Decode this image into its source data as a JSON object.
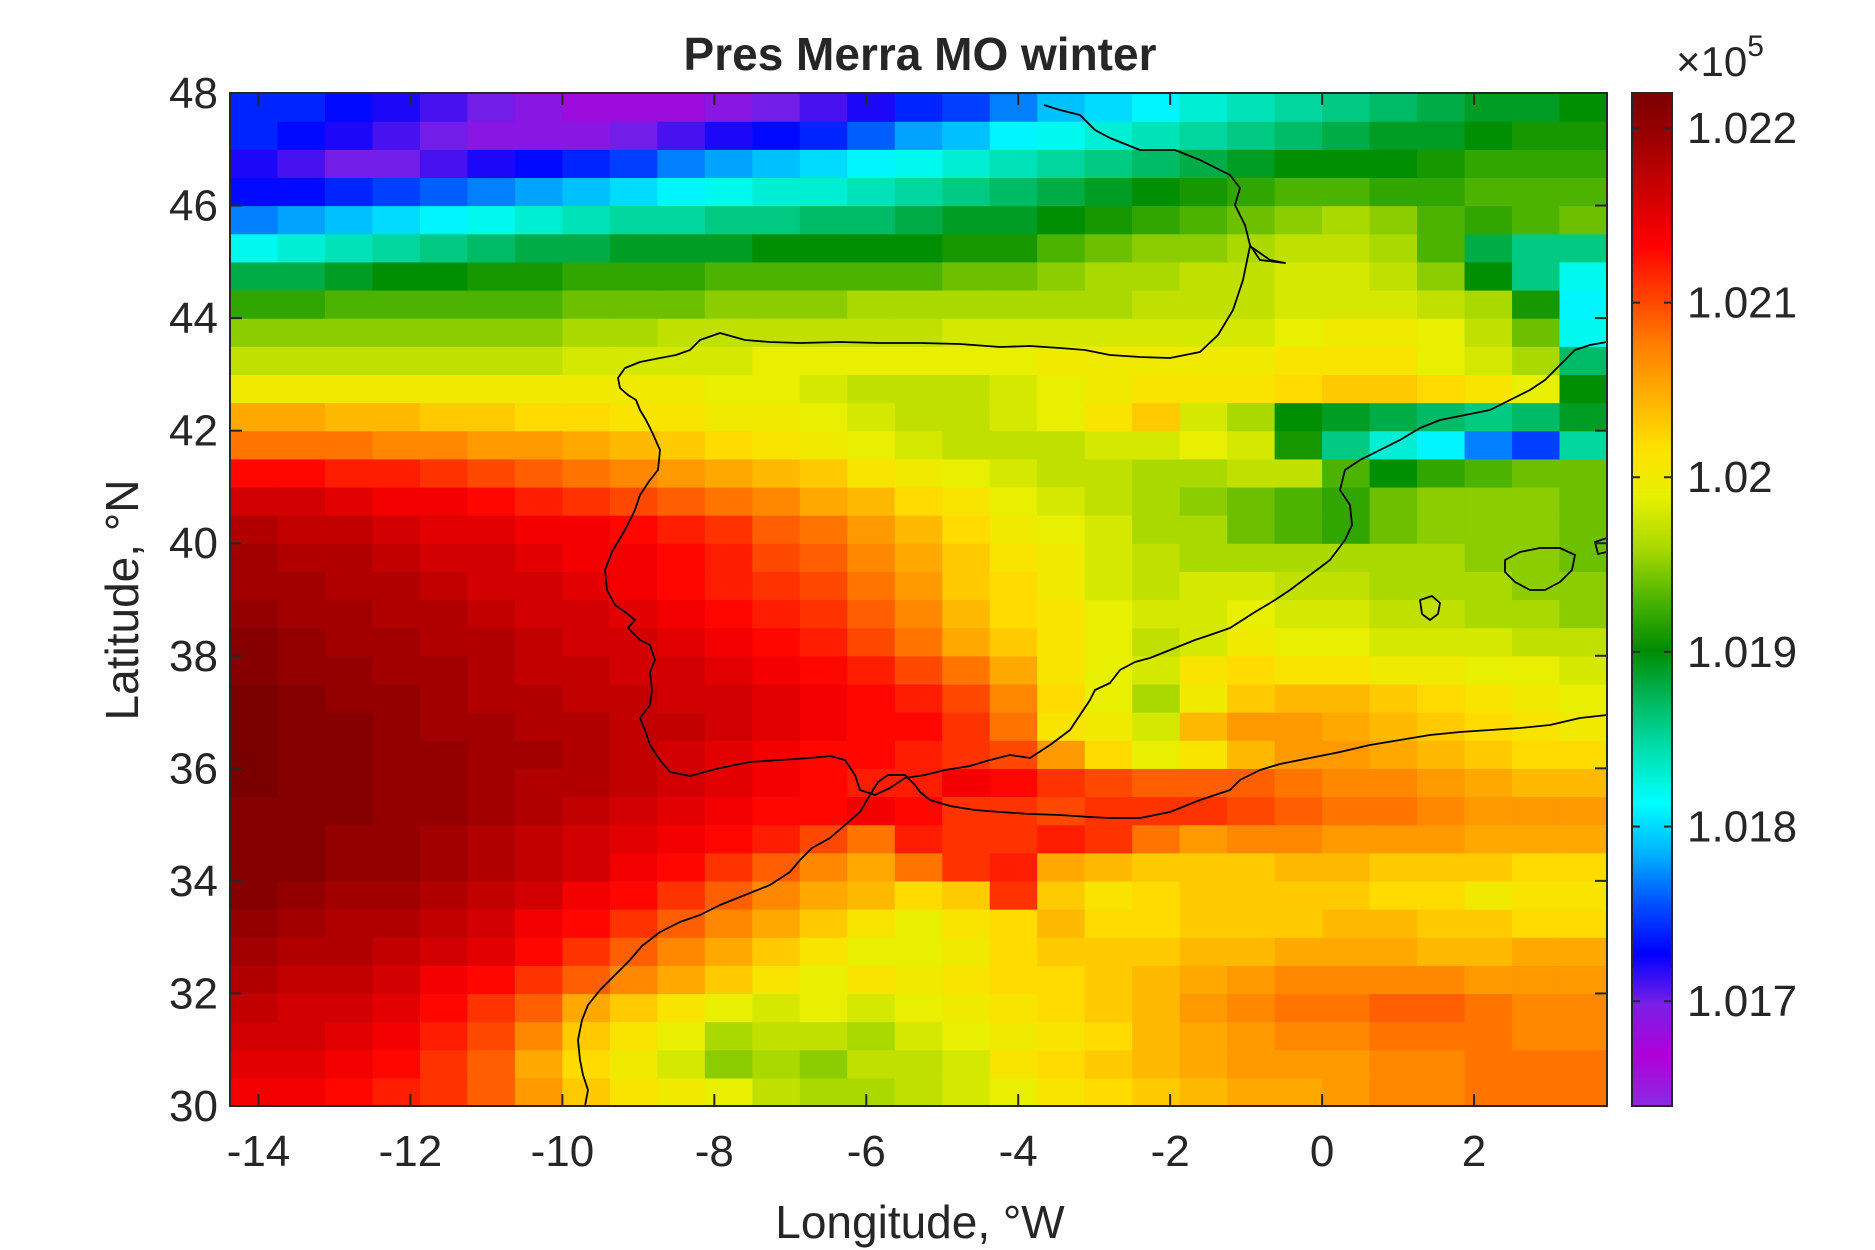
{
  "chart_data": {
    "type": "heatmap",
    "title": "Pres Merra MO winter",
    "xlabel": "Longitude, °W",
    "ylabel": "Latitude, °N",
    "xlim": [
      -14.375,
      3.75
    ],
    "ylim": [
      30,
      48
    ],
    "x_ticks": [
      -14,
      -12,
      -10,
      -8,
      -6,
      -4,
      -2,
      0,
      2
    ],
    "x_tick_labels": [
      "-14",
      "-12",
      "-10",
      "-8",
      "-6",
      "-4",
      "-2",
      "0",
      "2"
    ],
    "y_ticks": [
      30,
      32,
      34,
      36,
      38,
      40,
      42,
      44,
      46,
      48
    ],
    "y_tick_labels": [
      "30",
      "32",
      "34",
      "36",
      "38",
      "40",
      "42",
      "44",
      "46",
      "48"
    ],
    "grid": false,
    "colorbar": {
      "position": "right",
      "exponent_label": "×10",
      "exponent_power": "5",
      "clim": [
        1.0164,
        1.0222
      ],
      "ticks": [
        1.017,
        1.018,
        1.019,
        1.02,
        1.021,
        1.022
      ],
      "tick_labels": [
        "1.017",
        "1.018",
        "1.019",
        "1.02",
        "1.021",
        "1.022"
      ],
      "colormap": [
        "#8a2be2",
        "#b000d8",
        "#7a1fe6",
        "#0000ff",
        "#0050ff",
        "#00b4ff",
        "#00ffff",
        "#00e0b0",
        "#00b860",
        "#008c00",
        "#4cb400",
        "#a8d800",
        "#e6f000",
        "#ffe000",
        "#ffb000",
        "#ff8000",
        "#ff4000",
        "#ff0000",
        "#d00000",
        "#a00000",
        "#7a0000"
      ]
    },
    "cell_size_deg": {
      "lon": 0.625,
      "lat": 0.5
    },
    "lon_start": -14.375,
    "lat_start": 30,
    "values": [
      [
        1.0214,
        1.0214,
        1.0213,
        1.0212,
        1.0211,
        1.0209,
        1.0206,
        1.0203,
        1.0201,
        1.02,
        1.0199,
        1.0197,
        1.0196,
        1.0196,
        1.0197,
        1.0198,
        1.0199,
        1.0201,
        1.0202,
        1.0203,
        1.0204,
        1.0205,
        1.0205,
        1.0206,
        1.0207,
        1.0207,
        1.0208,
        1.0208,
        1.0208
      ],
      [
        1.0215,
        1.0215,
        1.0214,
        1.0213,
        1.0211,
        1.0209,
        1.0205,
        1.0202,
        1.02,
        1.0198,
        1.0195,
        1.0196,
        1.0195,
        1.0197,
        1.0197,
        1.0198,
        1.0201,
        1.0202,
        1.0203,
        1.0204,
        1.0205,
        1.0206,
        1.0206,
        1.0206,
        1.0207,
        1.0207,
        1.0208,
        1.0208,
        1.0208
      ],
      [
        1.0216,
        1.0216,
        1.0215,
        1.0214,
        1.0212,
        1.021,
        1.0207,
        1.0203,
        1.0201,
        1.0199,
        1.0196,
        1.0197,
        1.0197,
        1.0196,
        1.0198,
        1.0199,
        1.02,
        1.0201,
        1.0202,
        1.0204,
        1.0205,
        1.0206,
        1.0207,
        1.0207,
        1.0208,
        1.0208,
        1.0208,
        1.0207,
        1.0207
      ],
      [
        1.0217,
        1.0216,
        1.0216,
        1.0215,
        1.0213,
        1.0211,
        1.0209,
        1.0205,
        1.0203,
        1.0201,
        1.0199,
        1.0198,
        1.0199,
        1.0198,
        1.0199,
        1.02,
        1.0201,
        1.0202,
        1.0203,
        1.0204,
        1.0206,
        1.0207,
        1.0208,
        1.0208,
        1.0209,
        1.0209,
        1.0208,
        1.0207,
        1.0207
      ],
      [
        1.0218,
        1.0217,
        1.0217,
        1.0216,
        1.0214,
        1.0213,
        1.0211,
        1.0209,
        1.0207,
        1.0205,
        1.0203,
        1.0201,
        1.0199,
        1.0201,
        1.02,
        1.0201,
        1.0202,
        1.0202,
        1.0203,
        1.0204,
        1.0205,
        1.0206,
        1.0207,
        1.0207,
        1.0207,
        1.0207,
        1.0206,
        1.0206,
        1.0206
      ],
      [
        1.0219,
        1.0218,
        1.0218,
        1.0217,
        1.0216,
        1.0215,
        1.0213,
        1.0211,
        1.0209,
        1.0207,
        1.0205,
        1.0203,
        1.0201,
        1.0199,
        1.0199,
        1.02,
        1.0202,
        1.0203,
        1.0203,
        1.0203,
        1.0204,
        1.0204,
        1.0205,
        1.0205,
        1.0205,
        1.0204,
        1.0204,
        1.0205,
        1.0205
      ],
      [
        1.022,
        1.0219,
        1.0218,
        1.0218,
        1.0217,
        1.0216,
        1.0214,
        1.0213,
        1.0211,
        1.0209,
        1.0207,
        1.0205,
        1.0203,
        1.0201,
        1.0199,
        1.0201,
        1.0202,
        1.0204,
        1.0202,
        1.0202,
        1.0203,
        1.0203,
        1.0203,
        1.0204,
        1.0204,
        1.0203,
        1.0203,
        1.0202,
        1.0202
      ],
      [
        1.0221,
        1.022,
        1.0219,
        1.0219,
        1.0218,
        1.0217,
        1.0216,
        1.0214,
        1.0213,
        1.0211,
        1.0209,
        1.0207,
        1.0205,
        1.0204,
        1.0202,
        1.0203,
        1.0211,
        1.0203,
        1.0201,
        1.0202,
        1.0203,
        1.0203,
        1.0203,
        1.0203,
        1.0202,
        1.0202,
        1.02,
        1.0201,
        1.0201
      ],
      [
        1.0221,
        1.0221,
        1.022,
        1.022,
        1.0219,
        1.0218,
        1.0217,
        1.0216,
        1.0214,
        1.0213,
        1.0211,
        1.0209,
        1.0207,
        1.0205,
        1.0208,
        1.0211,
        1.0212,
        1.0205,
        1.0204,
        1.0203,
        1.0203,
        1.0203,
        1.0204,
        1.0204,
        1.0203,
        1.0203,
        1.0203,
        1.0202,
        1.0202
      ],
      [
        1.0221,
        1.0221,
        1.022,
        1.022,
        1.0219,
        1.0218,
        1.0217,
        1.0216,
        1.0215,
        1.0214,
        1.0213,
        1.0212,
        1.021,
        1.0208,
        1.0212,
        1.0211,
        1.0211,
        1.0212,
        1.0211,
        1.0208,
        1.0206,
        1.0207,
        1.0207,
        1.0206,
        1.0206,
        1.0206,
        1.0205,
        1.0205,
        1.0205
      ],
      [
        1.0221,
        1.0221,
        1.0221,
        1.022,
        1.022,
        1.0219,
        1.0218,
        1.0217,
        1.0216,
        1.0215,
        1.0214,
        1.0213,
        1.0213,
        1.0214,
        1.0213,
        1.0211,
        1.0211,
        1.021,
        1.0211,
        1.0211,
        1.0211,
        1.021,
        1.0209,
        1.0208,
        1.0208,
        1.0207,
        1.0206,
        1.0206,
        1.0206
      ],
      [
        1.0222,
        1.0221,
        1.0221,
        1.022,
        1.022,
        1.0219,
        1.0218,
        1.0218,
        1.0217,
        1.0216,
        1.0215,
        1.0214,
        1.0213,
        1.0212,
        1.0212,
        1.0214,
        1.0213,
        1.0211,
        1.021,
        1.0209,
        1.0209,
        1.0209,
        1.0208,
        1.0207,
        1.0207,
        1.0206,
        1.0205,
        1.0204,
        1.0204
      ],
      [
        1.0222,
        1.0221,
        1.0221,
        1.022,
        1.022,
        1.0219,
        1.0219,
        1.0218,
        1.0217,
        1.0216,
        1.0215,
        1.0214,
        1.0213,
        1.0213,
        1.0212,
        1.0211,
        1.021,
        1.0206,
        1.0202,
        1.0199,
        1.0201,
        1.0204,
        1.0206,
        1.0206,
        1.0205,
        1.0204,
        1.0203,
        1.0202,
        1.0202
      ],
      [
        1.0222,
        1.0221,
        1.0221,
        1.022,
        1.0219,
        1.0219,
        1.0218,
        1.0218,
        1.0217,
        1.0217,
        1.0216,
        1.0215,
        1.0214,
        1.0213,
        1.0213,
        1.0211,
        1.0208,
        1.0201,
        1.02,
        1.0198,
        1.0204,
        1.0206,
        1.0206,
        1.0205,
        1.0204,
        1.0203,
        1.0202,
        1.0201,
        1.02
      ],
      [
        1.0222,
        1.0221,
        1.022,
        1.022,
        1.0219,
        1.0218,
        1.0218,
        1.0217,
        1.0217,
        1.0216,
        1.0216,
        1.0215,
        1.0214,
        1.0213,
        1.0212,
        1.021,
        1.0207,
        1.0202,
        1.0199,
        1.0196,
        1.02,
        1.0203,
        1.0204,
        1.0204,
        1.0203,
        1.0202,
        1.0201,
        1.02,
        1.0199
      ],
      [
        1.0221,
        1.022,
        1.022,
        1.0219,
        1.0219,
        1.0218,
        1.0217,
        1.0217,
        1.0216,
        1.0216,
        1.0215,
        1.0214,
        1.0213,
        1.0212,
        1.021,
        1.0208,
        1.0205,
        1.0201,
        1.0199,
        1.0198,
        1.0201,
        1.0202,
        1.0201,
        1.0201,
        1.02,
        1.02,
        1.0199,
        1.0199,
        1.0198
      ],
      [
        1.0221,
        1.022,
        1.0219,
        1.0219,
        1.0218,
        1.0218,
        1.0217,
        1.0216,
        1.0216,
        1.0215,
        1.0214,
        1.0213,
        1.0212,
        1.021,
        1.0208,
        1.0205,
        1.0203,
        1.0201,
        1.0199,
        1.0197,
        1.0198,
        1.02,
        1.0199,
        1.0199,
        1.0198,
        1.0198,
        1.0198,
        1.0197,
        1.0197
      ],
      [
        1.022,
        1.0219,
        1.0219,
        1.0218,
        1.0218,
        1.0217,
        1.0216,
        1.0216,
        1.0215,
        1.0214,
        1.0213,
        1.0212,
        1.0211,
        1.0209,
        1.0207,
        1.0204,
        1.0202,
        1.0201,
        1.0199,
        1.0198,
        1.0198,
        1.0199,
        1.0198,
        1.0198,
        1.0197,
        1.0197,
        1.0196,
        1.0196,
        1.0195
      ],
      [
        1.0219,
        1.0219,
        1.0218,
        1.0218,
        1.0217,
        1.0216,
        1.0216,
        1.0215,
        1.0214,
        1.0213,
        1.0212,
        1.0211,
        1.021,
        1.0208,
        1.0206,
        1.0203,
        1.0202,
        1.02,
        1.0198,
        1.0197,
        1.0198,
        1.0198,
        1.0197,
        1.0197,
        1.0196,
        1.0196,
        1.0196,
        1.0195,
        1.0195
      ],
      [
        1.0219,
        1.0218,
        1.0218,
        1.0217,
        1.0216,
        1.0216,
        1.0215,
        1.0214,
        1.0214,
        1.0213,
        1.0212,
        1.021,
        1.0209,
        1.0207,
        1.0205,
        1.0203,
        1.0201,
        1.02,
        1.0198,
        1.0197,
        1.0196,
        1.0196,
        1.0196,
        1.0196,
        1.0196,
        1.0196,
        1.0195,
        1.0195,
        1.0194
      ],
      [
        1.0218,
        1.0217,
        1.0217,
        1.0216,
        1.0215,
        1.0215,
        1.0214,
        1.0214,
        1.0213,
        1.0212,
        1.0211,
        1.0209,
        1.0208,
        1.0206,
        1.0204,
        1.0202,
        1.02,
        1.0199,
        1.0198,
        1.0196,
        1.0196,
        1.0194,
        1.0193,
        1.0192,
        1.0194,
        1.0195,
        1.0195,
        1.0195,
        1.0194
      ],
      [
        1.0216,
        1.0216,
        1.0215,
        1.0214,
        1.0214,
        1.0213,
        1.0212,
        1.0211,
        1.021,
        1.0209,
        1.0208,
        1.0207,
        1.0205,
        1.0204,
        1.0202,
        1.0201,
        1.0199,
        1.0198,
        1.0197,
        1.0196,
        1.0195,
        1.0194,
        1.0193,
        1.0192,
        1.0194,
        1.0195,
        1.0195,
        1.0195,
        1.0194
      ],
      [
        1.0213,
        1.0213,
        1.0212,
        1.0212,
        1.0211,
        1.021,
        1.0209,
        1.0208,
        1.0207,
        1.0206,
        1.0205,
        1.0204,
        1.0203,
        1.0201,
        1.02,
        1.0199,
        1.0198,
        1.0197,
        1.0197,
        1.0196,
        1.0196,
        1.0197,
        1.0197,
        1.0193,
        1.019,
        1.0192,
        1.0193,
        1.0194,
        1.0194
      ],
      [
        1.0208,
        1.0208,
        1.0208,
        1.0207,
        1.0207,
        1.0206,
        1.0206,
        1.0205,
        1.0204,
        1.0203,
        1.0202,
        1.0201,
        1.02,
        1.0199,
        1.0198,
        1.0197,
        1.0197,
        1.0197,
        1.0198,
        1.0198,
        1.0199,
        1.0198,
        1.0191,
        1.0186,
        1.0183,
        1.0181,
        1.0177,
        1.0175,
        1.0185
      ],
      [
        1.0205,
        1.0205,
        1.0204,
        1.0204,
        1.0203,
        1.0203,
        1.0202,
        1.0202,
        1.0201,
        1.0201,
        1.02,
        1.02,
        1.0199,
        1.0198,
        1.0197,
        1.0197,
        1.0198,
        1.0199,
        1.0201,
        1.0203,
        1.0198,
        1.0196,
        1.019,
        1.0189,
        1.0188,
        1.0187,
        1.0186,
        1.0187,
        1.0189
      ],
      [
        1.02,
        1.02,
        1.02,
        1.02,
        1.02,
        1.02,
        1.02,
        1.02,
        1.02,
        1.02,
        1.0199,
        1.0199,
        1.0198,
        1.0197,
        1.0197,
        1.0197,
        1.0198,
        1.0199,
        1.02,
        1.0201,
        1.0201,
        1.0201,
        1.0202,
        1.0203,
        1.0203,
        1.0202,
        1.0201,
        1.0199,
        1.019
      ],
      [
        1.0197,
        1.0197,
        1.0197,
        1.0197,
        1.0197,
        1.0197,
        1.0197,
        1.0198,
        1.0198,
        1.0198,
        1.0198,
        1.0199,
        1.0199,
        1.0199,
        1.0199,
        1.0199,
        1.0199,
        1.02,
        1.02,
        1.02,
        1.02,
        1.02,
        1.0201,
        1.0201,
        1.0201,
        1.0199,
        1.0198,
        1.0196,
        1.0187
      ],
      [
        1.0195,
        1.0195,
        1.0195,
        1.0195,
        1.0195,
        1.0195,
        1.0195,
        1.0196,
        1.0196,
        1.0197,
        1.0197,
        1.0197,
        1.0197,
        1.0197,
        1.0197,
        1.0198,
        1.0198,
        1.0198,
        1.0198,
        1.0198,
        1.0198,
        1.0198,
        1.0199,
        1.02,
        1.02,
        1.0199,
        1.0197,
        1.0194,
        1.0182
      ],
      [
        1.0192,
        1.0192,
        1.0193,
        1.0193,
        1.0193,
        1.0193,
        1.0193,
        1.0194,
        1.0194,
        1.0194,
        1.0195,
        1.0195,
        1.0195,
        1.0196,
        1.0196,
        1.0196,
        1.0196,
        1.0196,
        1.0196,
        1.0197,
        1.0197,
        1.0197,
        1.0198,
        1.0198,
        1.0198,
        1.0197,
        1.0196,
        1.0191,
        1.0181
      ],
      [
        1.0188,
        1.0188,
        1.0189,
        1.019,
        1.019,
        1.0191,
        1.0191,
        1.0192,
        1.0192,
        1.0192,
        1.0193,
        1.0193,
        1.0193,
        1.0193,
        1.0193,
        1.0194,
        1.0194,
        1.0195,
        1.0196,
        1.0196,
        1.0197,
        1.0197,
        1.0198,
        1.0198,
        1.0197,
        1.0195,
        1.019,
        1.0186,
        1.0182
      ],
      [
        1.0182,
        1.0183,
        1.0184,
        1.0185,
        1.0186,
        1.0187,
        1.0188,
        1.0188,
        1.0189,
        1.0189,
        1.0189,
        1.019,
        1.019,
        1.019,
        1.019,
        1.0191,
        1.0191,
        1.0193,
        1.0194,
        1.0195,
        1.0195,
        1.0196,
        1.0197,
        1.0197,
        1.0196,
        1.0193,
        1.0188,
        1.0186,
        1.0186
      ],
      [
        1.0177,
        1.0178,
        1.0179,
        1.018,
        1.0181,
        1.0182,
        1.0183,
        1.0184,
        1.0185,
        1.0185,
        1.0186,
        1.0186,
        1.0187,
        1.0187,
        1.0188,
        1.0189,
        1.0189,
        1.019,
        1.0191,
        1.0192,
        1.0193,
        1.0194,
        1.0195,
        1.0196,
        1.0195,
        1.0193,
        1.0192,
        1.0193,
        1.0194
      ],
      [
        1.0173,
        1.0173,
        1.0174,
        1.0175,
        1.0176,
        1.0177,
        1.0178,
        1.0179,
        1.018,
        1.0181,
        1.0182,
        1.0183,
        1.0183,
        1.0184,
        1.0185,
        1.0186,
        1.0187,
        1.0188,
        1.0189,
        1.019,
        1.0191,
        1.0192,
        1.0193,
        1.0193,
        1.0192,
        1.0192,
        1.0193,
        1.0193,
        1.0193
      ],
      [
        1.0172,
        1.0171,
        1.017,
        1.017,
        1.0171,
        1.0172,
        1.0173,
        1.0174,
        1.0175,
        1.0177,
        1.0178,
        1.0179,
        1.018,
        1.0181,
        1.0182,
        1.0183,
        1.0184,
        1.0185,
        1.0186,
        1.0187,
        1.0188,
        1.0189,
        1.019,
        1.019,
        1.019,
        1.0191,
        1.0192,
        1.0192,
        1.0192
      ],
      [
        1.0174,
        1.0173,
        1.0172,
        1.0171,
        1.017,
        1.0169,
        1.0169,
        1.0169,
        1.017,
        1.0171,
        1.0172,
        1.0173,
        1.0174,
        1.0176,
        1.0178,
        1.0179,
        1.0181,
        1.0182,
        1.0183,
        1.0184,
        1.0185,
        1.0186,
        1.0187,
        1.0188,
        1.0189,
        1.0189,
        1.019,
        1.0191,
        1.0191
      ],
      [
        1.0174,
        1.0174,
        1.0173,
        1.0172,
        1.0171,
        1.017,
        1.0169,
        1.0168,
        1.0168,
        1.0168,
        1.0169,
        1.017,
        1.0171,
        1.0172,
        1.0174,
        1.0175,
        1.0177,
        1.0179,
        1.018,
        1.0181,
        1.0183,
        1.0184,
        1.0185,
        1.0186,
        1.0187,
        1.0188,
        1.0189,
        1.0189,
        1.019
      ]
    ]
  }
}
